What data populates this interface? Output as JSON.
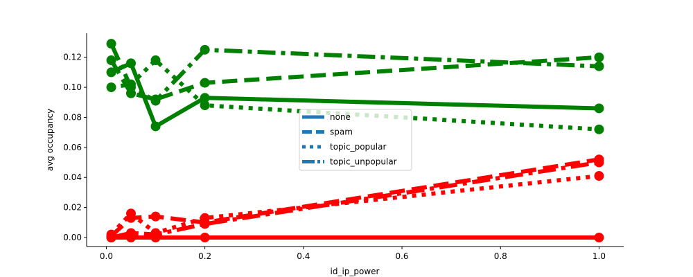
{
  "chart_data": {
    "type": "line",
    "title": "",
    "xlabel": "id_ip_power",
    "ylabel": "avg occupancy",
    "xlim": [
      -0.04,
      1.05
    ],
    "ylim": [
      -0.006,
      0.136
    ],
    "x_ticks": [
      0.0,
      0.2,
      0.4,
      0.6,
      0.8,
      1.0
    ],
    "x_tick_labels": [
      "0.0",
      "0.2",
      "0.4",
      "0.6",
      "0.8",
      "1.0"
    ],
    "y_ticks": [
      0.0,
      0.02,
      0.04,
      0.06,
      0.08,
      0.1,
      0.12
    ],
    "y_tick_labels": [
      "0.00",
      "0.02",
      "0.04",
      "0.06",
      "0.08",
      "0.10",
      "0.12"
    ],
    "grid": false,
    "spines": [
      "left",
      "bottom"
    ],
    "legend": {
      "placement": "center",
      "color": "#1f77b4",
      "entries": [
        {
          "label": "none",
          "dash": "solid"
        },
        {
          "label": "spam",
          "dash": "dashed"
        },
        {
          "label": "topic_popular",
          "dash": "dotted"
        },
        {
          "label": "topic_unpopular",
          "dash": "dashdot"
        }
      ]
    },
    "series": [
      {
        "style": "solid",
        "color": "#008000",
        "x": [
          0.01,
          0.05,
          0.1,
          0.2,
          1.0
        ],
        "y": [
          0.11,
          0.116,
          0.074,
          0.093,
          0.086
        ]
      },
      {
        "style": "dashed",
        "color": "#008000",
        "x": [
          0.01,
          0.05,
          0.1,
          0.2,
          1.0
        ],
        "y": [
          0.118,
          0.096,
          0.092,
          0.103,
          0.12
        ]
      },
      {
        "style": "dotted",
        "color": "#008000",
        "x": [
          0.01,
          0.05,
          0.1,
          0.2,
          1.0
        ],
        "y": [
          0.1,
          0.102,
          0.118,
          0.088,
          0.072
        ]
      },
      {
        "style": "dashdot",
        "color": "#008000",
        "x": [
          0.01,
          0.05,
          0.1,
          0.2,
          1.0
        ],
        "y": [
          0.129,
          0.1,
          0.091,
          0.125,
          0.114
        ]
      },
      {
        "style": "solid",
        "color": "#ff0000",
        "x": [
          0.01,
          0.05,
          0.1,
          0.2,
          1.0
        ],
        "y": [
          0.0,
          0.0,
          0.0,
          0.0,
          0.0
        ]
      },
      {
        "style": "dashed",
        "color": "#ff0000",
        "x": [
          0.01,
          0.05,
          0.1,
          0.2,
          1.0
        ],
        "y": [
          0.001,
          0.013,
          0.014,
          0.01,
          0.052
        ]
      },
      {
        "style": "dotted",
        "color": "#ff0000",
        "x": [
          0.01,
          0.05,
          0.1,
          0.2,
          1.0
        ],
        "y": [
          0.002,
          0.016,
          0.003,
          0.013,
          0.041
        ]
      },
      {
        "style": "dashdot",
        "color": "#ff0000",
        "x": [
          0.01,
          0.05,
          0.1,
          0.2,
          1.0
        ],
        "y": [
          0.0,
          0.003,
          0.002,
          0.009,
          0.05
        ]
      }
    ]
  }
}
